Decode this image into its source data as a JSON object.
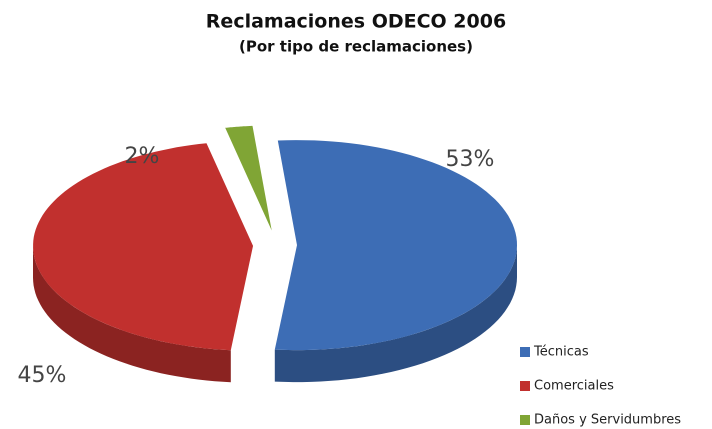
{
  "chart_data": {
    "type": "pie",
    "title": "Reclamaciones ODECO 2006",
    "subtitle": "(Por tipo de reclamaciones)",
    "categories": [
      "Técnicas",
      "Comerciales",
      "Daños y Servidumbres"
    ],
    "values": [
      53,
      45,
      2
    ],
    "value_labels": [
      "53%",
      "45%",
      "2%"
    ],
    "colors": [
      "#3d6db5",
      "#c1302e",
      "#80a535"
    ],
    "legend": "bottom-right"
  }
}
